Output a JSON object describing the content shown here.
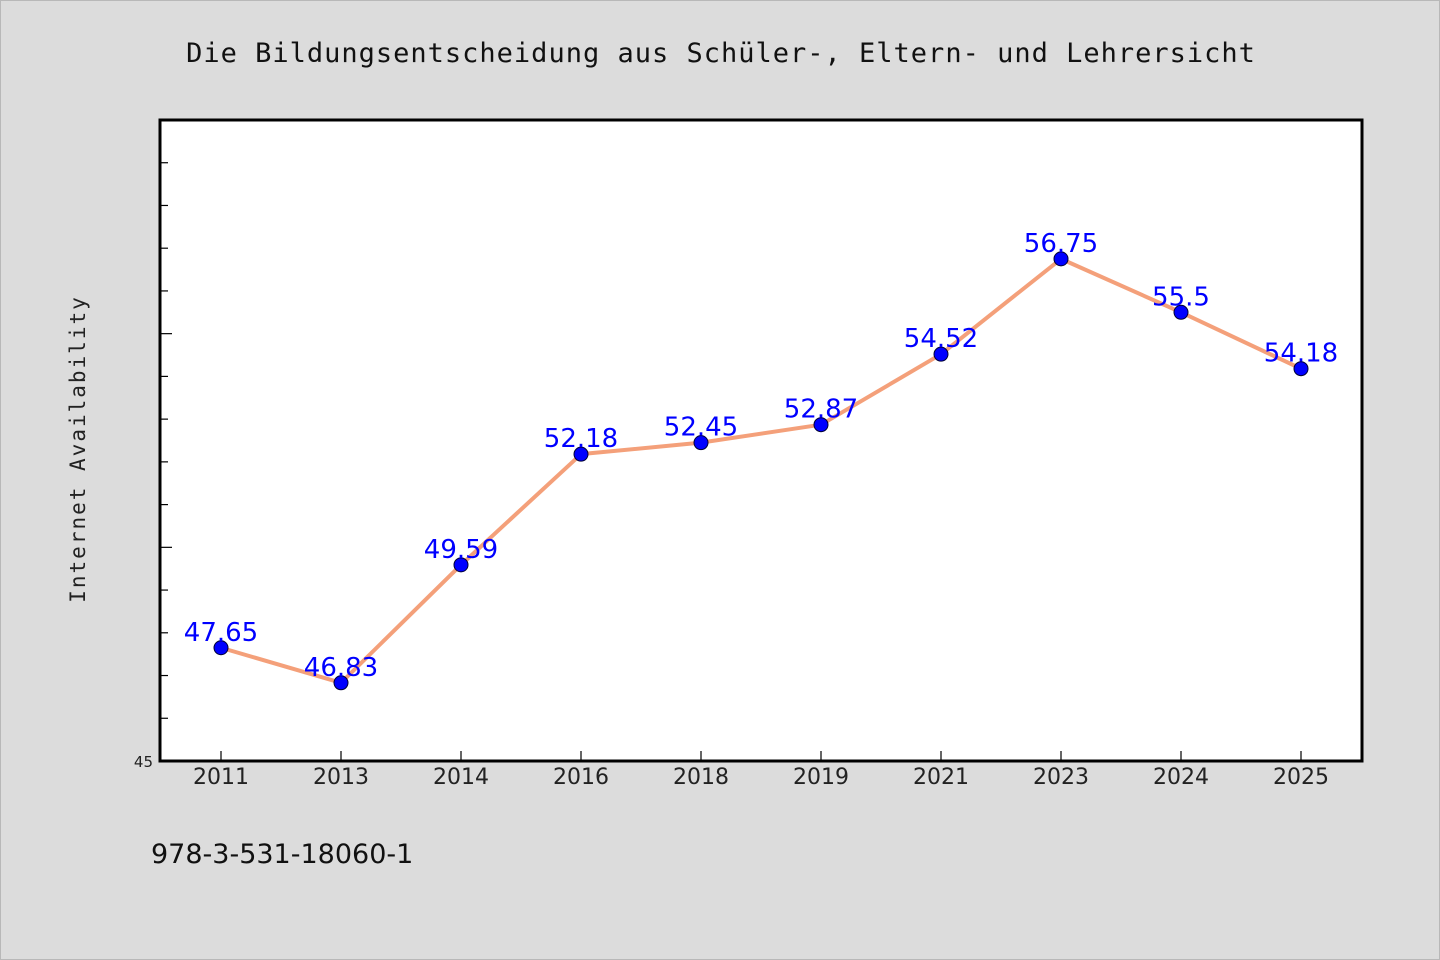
{
  "chart_data": {
    "type": "line",
    "title": "Die Bildungsentscheidung aus Schüler-, Eltern- und Lehrersicht",
    "ylabel": "Internet Availability",
    "xlabel": "",
    "categories": [
      "2011",
      "2013",
      "2014",
      "2016",
      "2018",
      "2019",
      "2021",
      "2023",
      "2024",
      "2025"
    ],
    "series": [
      {
        "values": [
          47.65,
          46.83,
          49.59,
          52.18,
          52.45,
          52.87,
          54.52,
          56.75,
          55.5,
          54.18
        ],
        "labels": [
          "47.65",
          "46.83",
          "49.59",
          "52.18",
          "52.45",
          "52.87",
          "54.52",
          "56.75",
          "55.5",
          "54.18"
        ]
      }
    ],
    "ylim": [
      45,
      60
    ],
    "y_min_label": "45",
    "grid": false,
    "line_color": "#f4a07a",
    "marker_color": "#0000ff",
    "label_color": "#0000ff"
  },
  "footer": {
    "isbn": "978-3-531-18060-1"
  }
}
